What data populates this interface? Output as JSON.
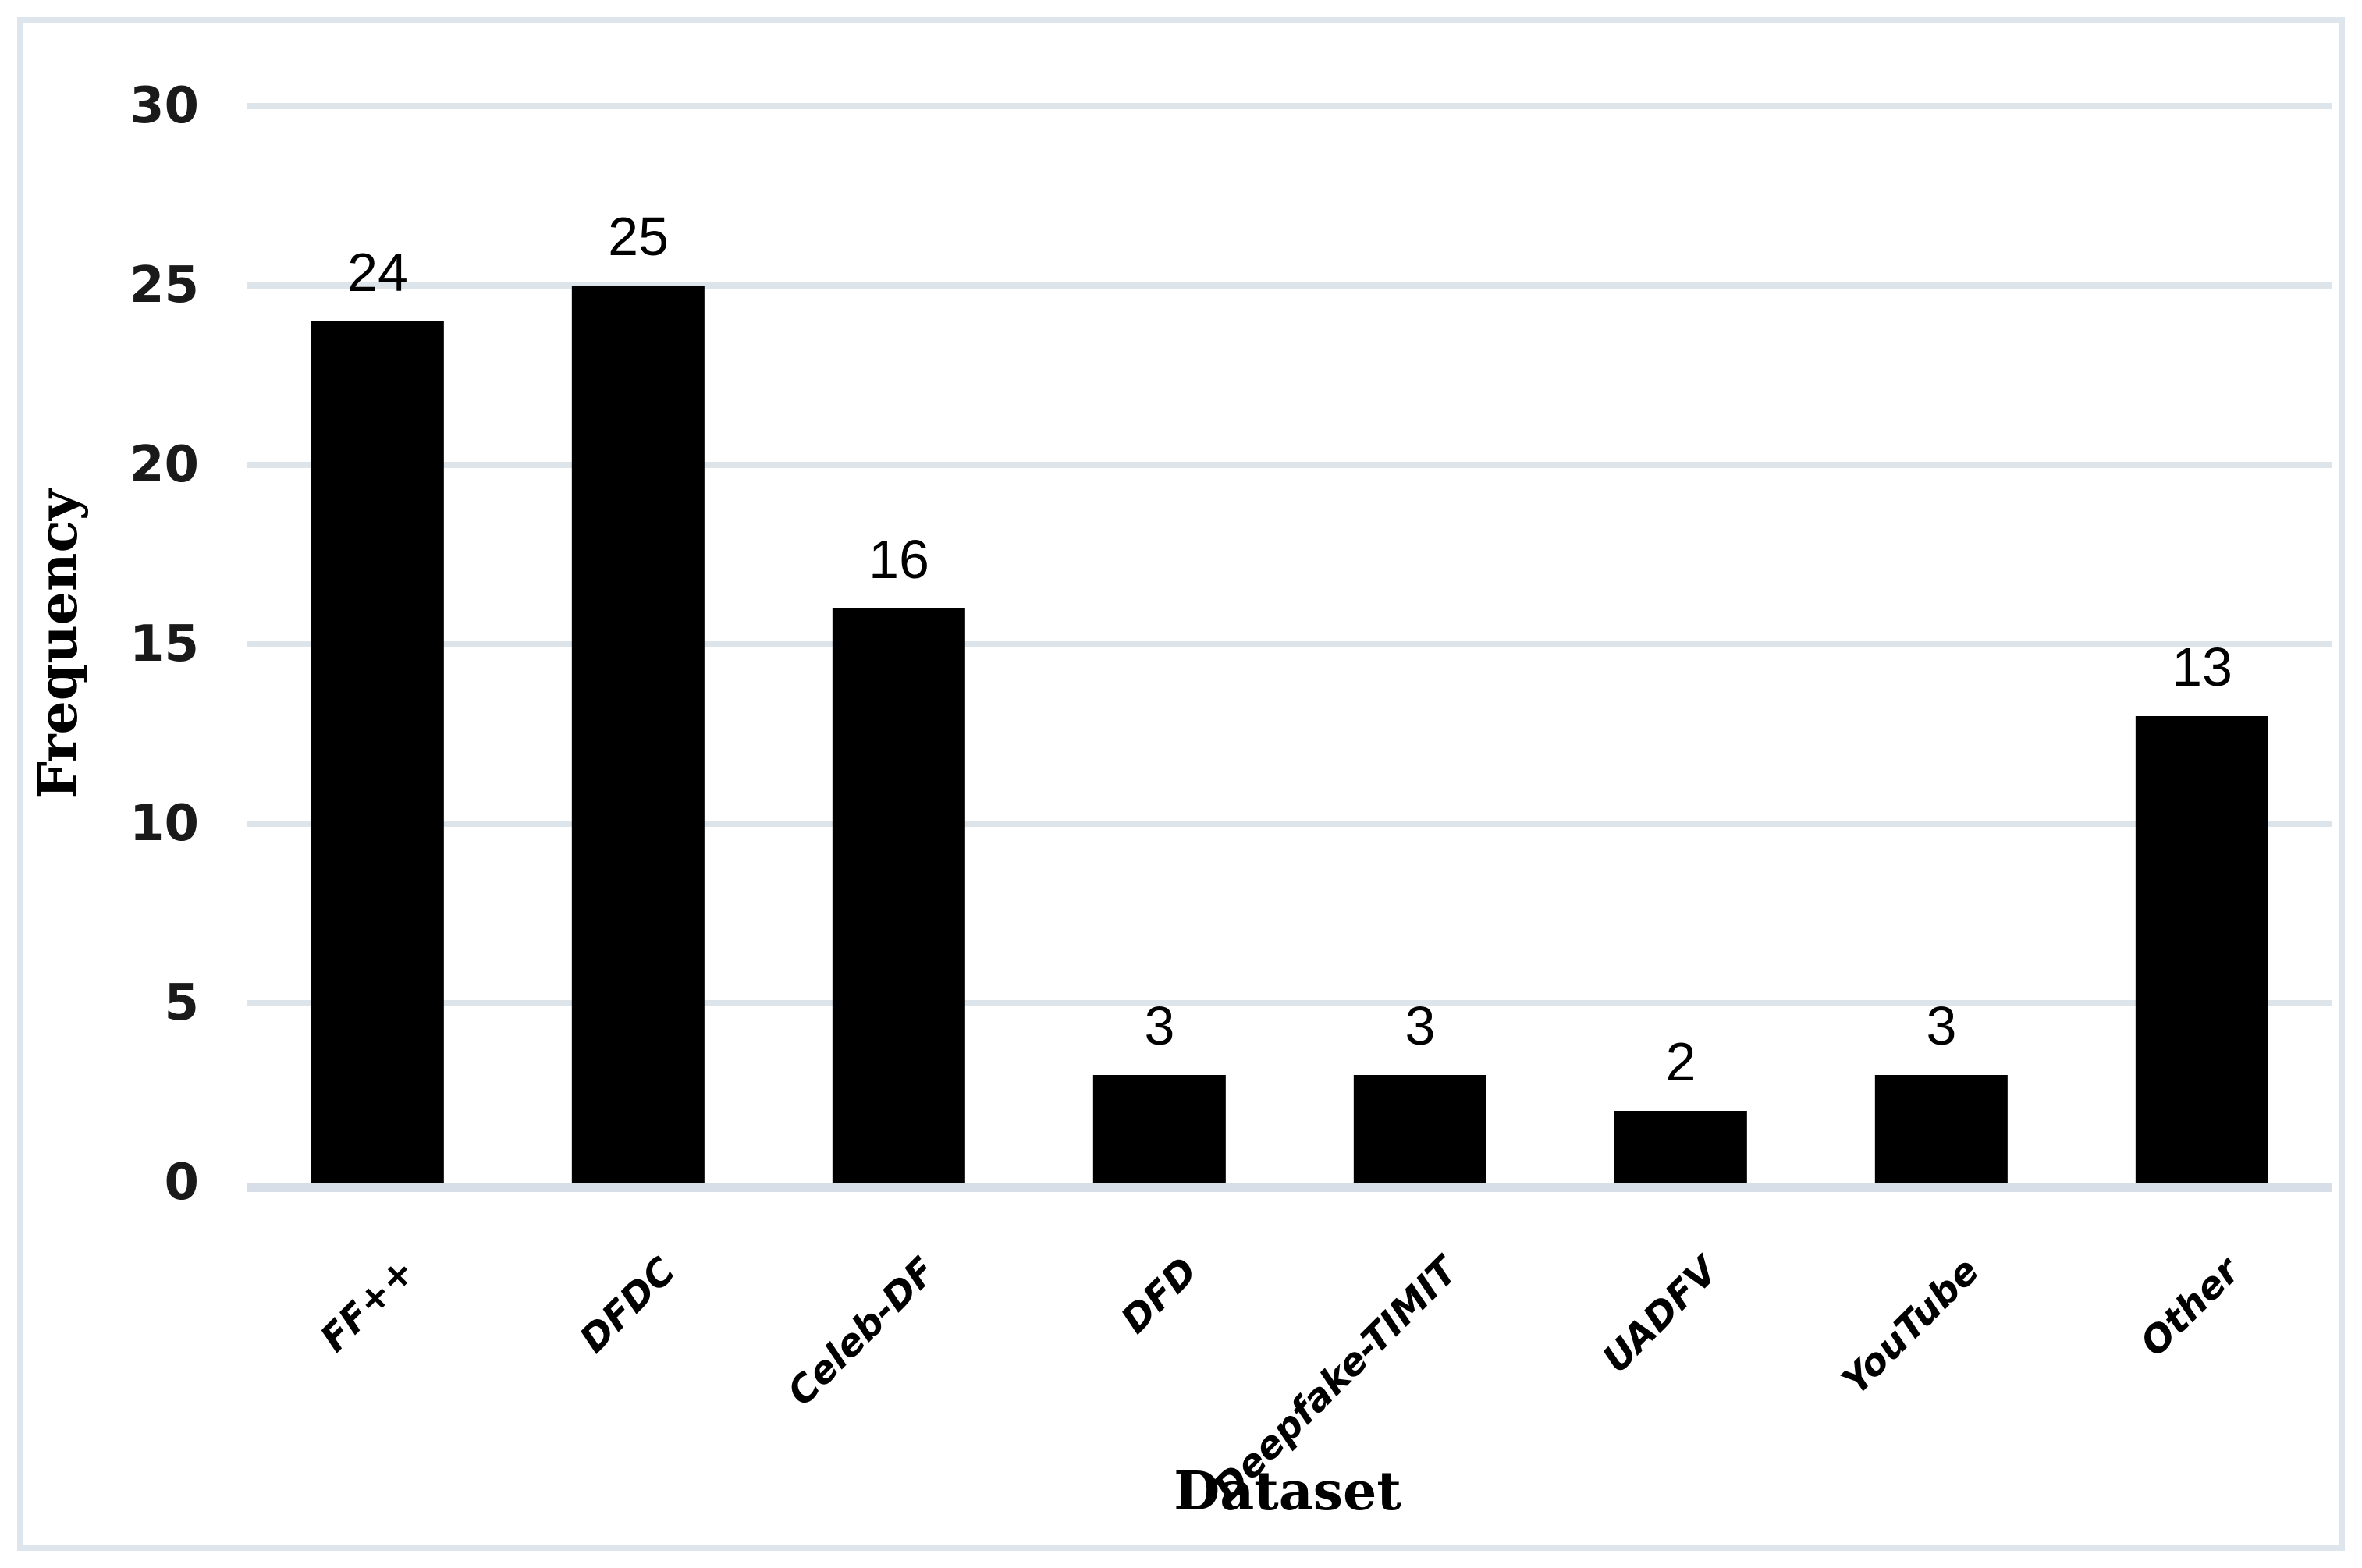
{
  "figure": {
    "background_color": "#ffffff",
    "frame_border_color": "#dfe5ec",
    "gridline_color": "#dde4ea",
    "axis_line_color": "#d7dee8",
    "bar_color": "#000000",
    "text_color": "#000000"
  },
  "chart_data": {
    "type": "bar",
    "title": "",
    "categories": [
      "FF++",
      "DFDC",
      "Celeb-DF",
      "DFD",
      "Deepfake-TIMIT",
      "UADFV",
      "YouTube",
      "Other"
    ],
    "values": [
      24,
      25,
      16,
      3,
      3,
      2,
      3,
      13
    ],
    "data_labels": [
      "24",
      "25",
      "16",
      "3",
      "3",
      "2",
      "3",
      "13"
    ],
    "xlabel": "Dataset",
    "ylabel": "Frequency",
    "ylim": [
      0,
      30
    ],
    "yticks": [
      0,
      5,
      10,
      15,
      20,
      25,
      30
    ],
    "grid": "horizontal",
    "legend": "none",
    "bar_color": "#000000"
  }
}
